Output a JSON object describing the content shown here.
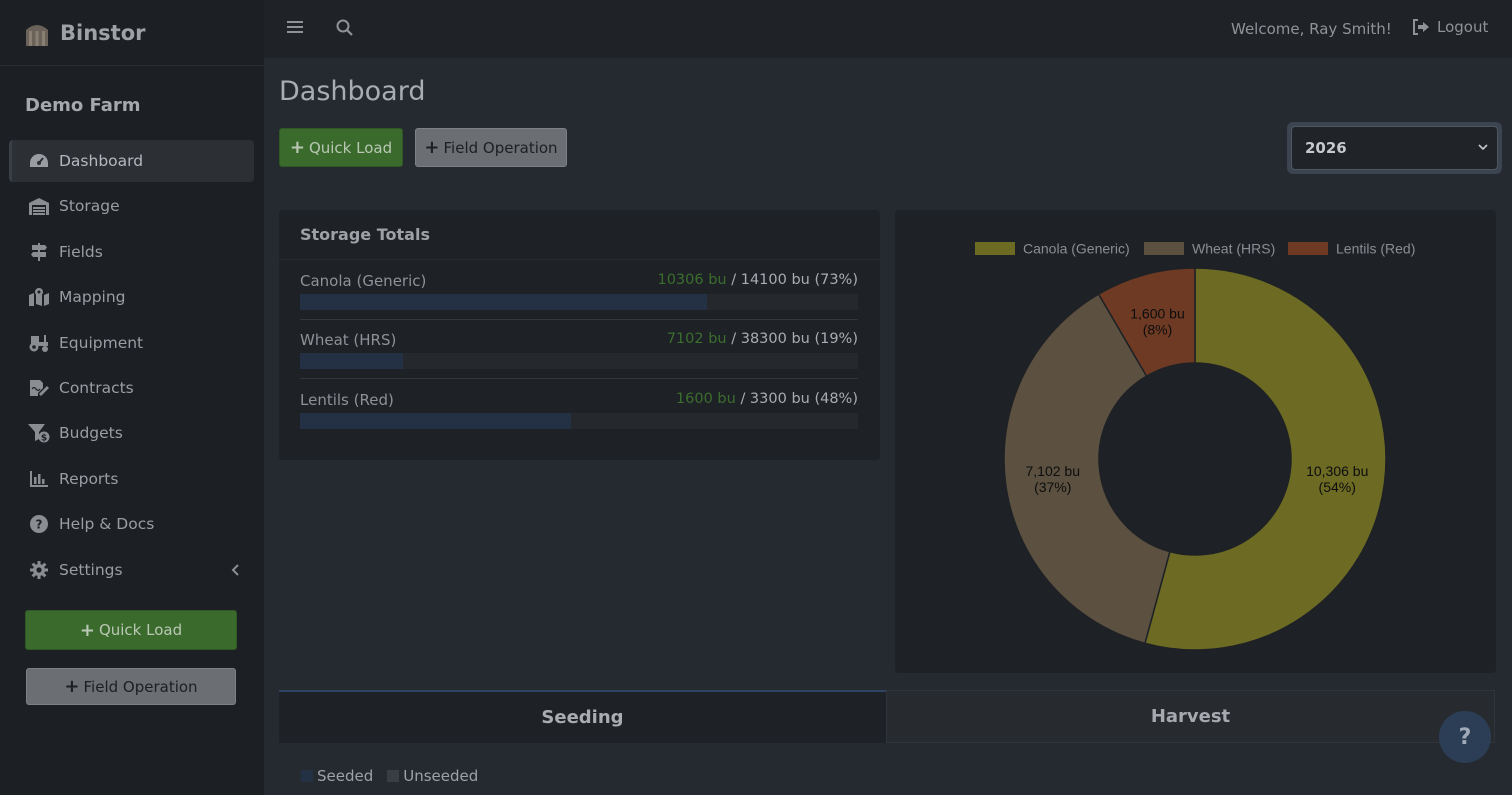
{
  "app": {
    "name": "Binstor"
  },
  "sidebar": {
    "farm_name": "Demo Farm",
    "items": [
      {
        "label": "Dashboard",
        "icon": "gauge-icon",
        "active": true
      },
      {
        "label": "Storage",
        "icon": "warehouse-icon"
      },
      {
        "label": "Fields",
        "icon": "signs-icon"
      },
      {
        "label": "Mapping",
        "icon": "map-marker-icon"
      },
      {
        "label": "Equipment",
        "icon": "tractor-icon"
      },
      {
        "label": "Contracts",
        "icon": "signature-icon"
      },
      {
        "label": "Budgets",
        "icon": "funnel-dollar-icon"
      },
      {
        "label": "Reports",
        "icon": "bar-chart-icon"
      },
      {
        "label": "Help & Docs",
        "icon": "question-circle-icon"
      },
      {
        "label": "Settings",
        "icon": "gear-icon"
      }
    ],
    "quick_load_label": "Quick Load",
    "field_operation_label": "Field Operation"
  },
  "topbar": {
    "welcome": "Welcome, Ray Smith!",
    "logout_label": "Logout"
  },
  "main": {
    "title": "Dashboard",
    "quick_load_label": "Quick Load",
    "field_operation_label": "Field Operation",
    "year": "2026"
  },
  "storage": {
    "title": "Storage Totals",
    "rows": [
      {
        "crop": "Canola (Generic)",
        "current": "10306 bu",
        "capacity": "/ 14100 bu (73%)",
        "fraction": 0.73
      },
      {
        "crop": "Wheat (HRS)",
        "current": "7102 bu",
        "capacity": "/ 38300 bu (19%)",
        "fraction": 0.185
      },
      {
        "crop": "Lentils (Red)",
        "current": "1600 bu",
        "capacity": "/ 3300 bu (48%)",
        "fraction": 0.485
      }
    ]
  },
  "chart_data": {
    "type": "pie",
    "donut": true,
    "legend_position": "top",
    "categories": [
      "Canola (Generic)",
      "Wheat (HRS)",
      "Lentils (Red)"
    ],
    "values": [
      10306,
      7102,
      1600
    ],
    "value_labels": [
      "10,306 bu",
      "7,102 bu",
      "1,600 bu"
    ],
    "percent_labels": [
      "(54%)",
      "(37%)",
      "(8%)"
    ],
    "colors": [
      "#6c6a23",
      "#5c5140",
      "#6e3a24"
    ]
  },
  "tabs": [
    {
      "label": "Seeding"
    },
    {
      "label": "Harvest"
    }
  ],
  "seeding_legend": [
    {
      "label": "Seeded",
      "color": "#243145"
    },
    {
      "label": "Unseeded",
      "color": "#3a3d41"
    }
  ],
  "help_button": {
    "label": "?"
  }
}
